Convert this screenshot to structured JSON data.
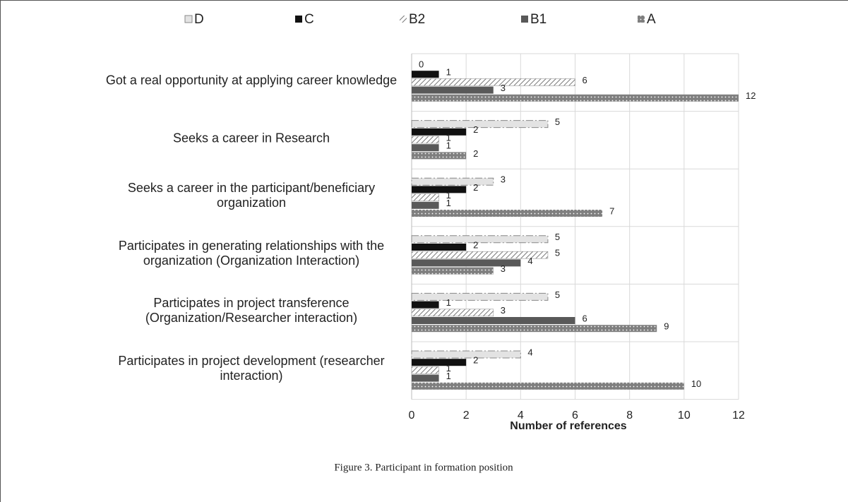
{
  "chart_data": {
    "type": "hbar",
    "caption": "Figure 3. Participant in formation position",
    "xlabel": "Number of references",
    "categories": [
      "Got a real opportunity at applying career knowledge",
      "Seeks a career in Research",
      "Seeks a career in the participant/beneficiary organization",
      "Participates in generating relationships with the organization (Organization Interaction)",
      "Participates in project transference (Organization/Researcher interaction)",
      "Participates in project development (researcher interaction)"
    ],
    "series": [
      {
        "name": "D",
        "color": "#d9d9d9",
        "values": [
          0,
          5,
          3,
          5,
          5,
          4
        ]
      },
      {
        "name": "C",
        "color": "#111111",
        "values": [
          1,
          2,
          2,
          2,
          1,
          2
        ]
      },
      {
        "name": "B2",
        "color": "#a6a6a6",
        "values": [
          6,
          1,
          1,
          5,
          3,
          1
        ]
      },
      {
        "name": "B1",
        "color": "#595959",
        "values": [
          3,
          1,
          1,
          4,
          6,
          1
        ]
      },
      {
        "name": "A",
        "color": "#808080",
        "values": [
          12,
          2,
          7,
          3,
          9,
          10
        ]
      }
    ],
    "xlim": [
      0,
      12
    ],
    "xticks": [
      0,
      2,
      4,
      6,
      8,
      10,
      12
    ],
    "grid": true
  }
}
